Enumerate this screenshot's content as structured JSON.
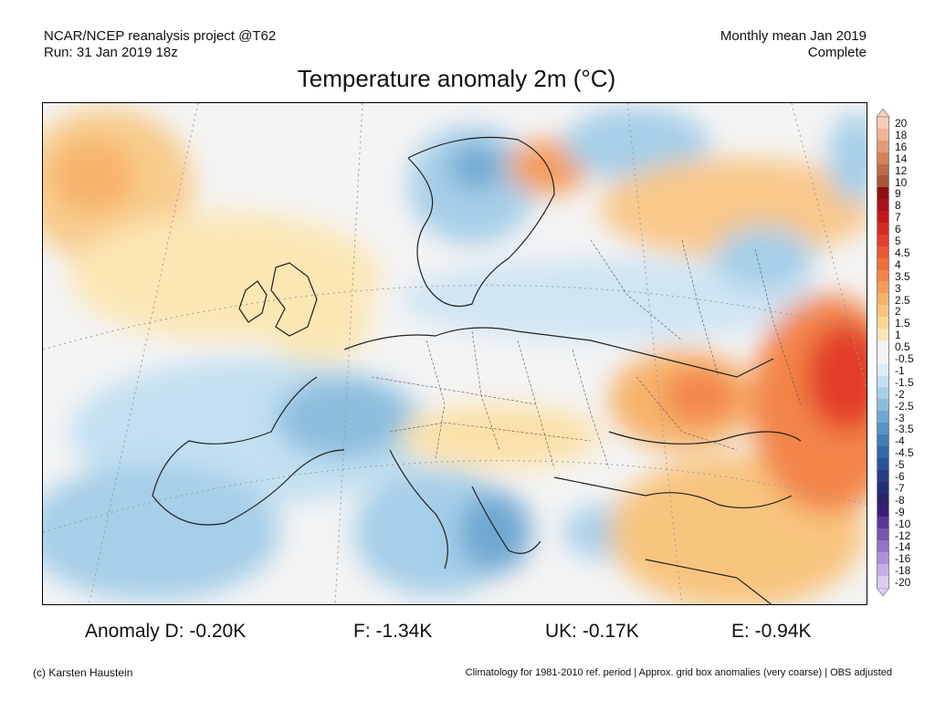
{
  "header": {
    "source_line1": "NCAR/NCEP reanalysis project @T62",
    "source_line2": "Run: 31 Jan 2019 18z",
    "period_line1": "Monthly mean Jan 2019",
    "period_line2": "Complete",
    "title": "Temperature anomaly 2m (°C)"
  },
  "colorbar": {
    "levels": [
      {
        "label": "20",
        "color": "#f7cdb8"
      },
      {
        "label": "18",
        "color": "#efb497"
      },
      {
        "label": "16",
        "color": "#e49a78"
      },
      {
        "label": "14",
        "color": "#d4805b"
      },
      {
        "label": "12",
        "color": "#bf6a48"
      },
      {
        "label": "10",
        "color": "#a85538"
      },
      {
        "label": "9",
        "color": "#8e1010"
      },
      {
        "label": "8",
        "color": "#a8121a"
      },
      {
        "label": "7",
        "color": "#c21a1f"
      },
      {
        "label": "6",
        "color": "#d62a25"
      },
      {
        "label": "5",
        "color": "#e33e2c"
      },
      {
        "label": "4.5",
        "color": "#ec5634"
      },
      {
        "label": "4",
        "color": "#f06d3c"
      },
      {
        "label": "3.5",
        "color": "#f38548"
      },
      {
        "label": "3",
        "color": "#f59c58"
      },
      {
        "label": "2.5",
        "color": "#f7b26a"
      },
      {
        "label": "2",
        "color": "#f8c57f"
      },
      {
        "label": "1.5",
        "color": "#f9d796"
      },
      {
        "label": "1",
        "color": "#fbe6b4"
      },
      {
        "label": "0.5",
        "color": "#f4f4f4"
      },
      {
        "label": "-0.5",
        "color": "#f4f4f4"
      },
      {
        "label": "-1",
        "color": "#dcedf8"
      },
      {
        "label": "-1.5",
        "color": "#c2e0f2"
      },
      {
        "label": "-2",
        "color": "#a6cfe8"
      },
      {
        "label": "-2.5",
        "color": "#8bbddd"
      },
      {
        "label": "-3",
        "color": "#6fa8d2"
      },
      {
        "label": "-3.5",
        "color": "#5893c5"
      },
      {
        "label": "-4",
        "color": "#437db7"
      },
      {
        "label": "-4.5",
        "color": "#3367a8"
      },
      {
        "label": "-5",
        "color": "#2a5297"
      },
      {
        "label": "-6",
        "color": "#263e86"
      },
      {
        "label": "-7",
        "color": "#262f76"
      },
      {
        "label": "-8",
        "color": "#2a2366"
      },
      {
        "label": "-9",
        "color": "#3a1f7a"
      },
      {
        "label": "-10",
        "color": "#5a3796"
      },
      {
        "label": "-12",
        "color": "#7a55b0"
      },
      {
        "label": "-14",
        "color": "#9572c6"
      },
      {
        "label": "-16",
        "color": "#ae90d8"
      },
      {
        "label": "-18",
        "color": "#c6aee6"
      },
      {
        "label": "-20",
        "color": "#dccbf1"
      }
    ]
  },
  "stats": {
    "germany": "Anomaly D: -0.20K",
    "france": "F: -1.34K",
    "uk": "UK: -0.17K",
    "europe": "E: -0.94K"
  },
  "footer": {
    "copyright": "(c) Karsten Haustein",
    "note": "Climatology for 1981-2010 ref. period | Approx. grid box anomalies (very coarse) | OBS adjusted"
  }
}
